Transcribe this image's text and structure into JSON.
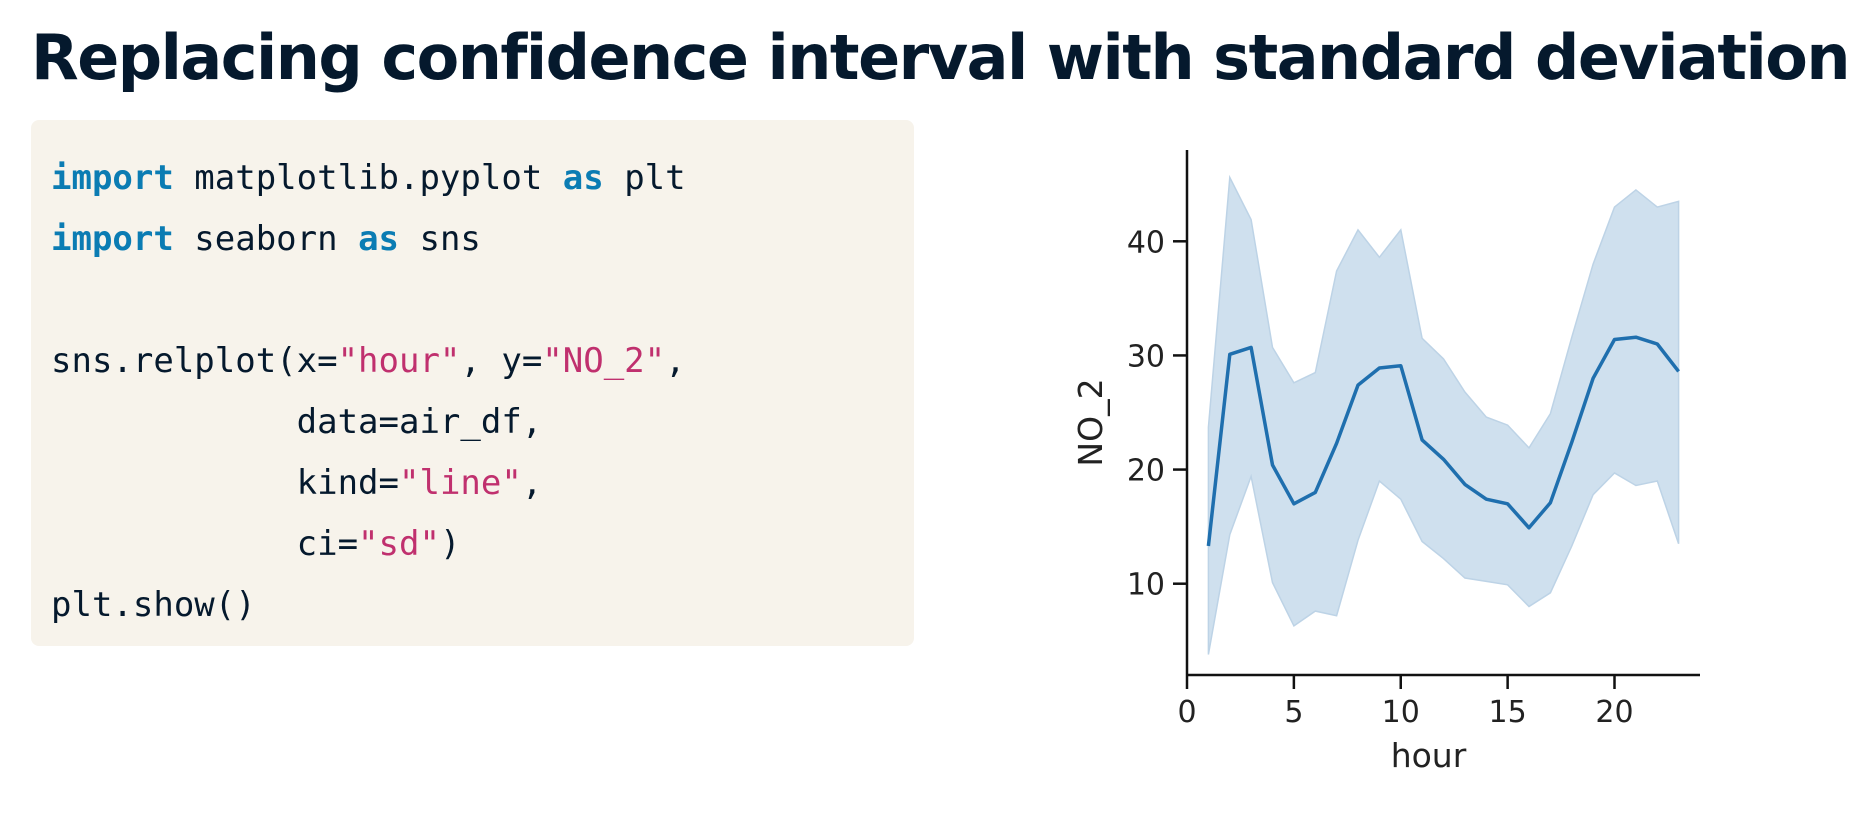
{
  "slide": {
    "title": "Replacing confidence interval with standard deviation"
  },
  "code": {
    "lines": [
      [
        {
          "t": "import",
          "k": "kw"
        },
        {
          "t": " matplotlib.pyplot ",
          "k": "plain"
        },
        {
          "t": "as",
          "k": "kw"
        },
        {
          "t": " plt",
          "k": "plain"
        }
      ],
      [
        {
          "t": "import",
          "k": "kw"
        },
        {
          "t": " seaborn ",
          "k": "plain"
        },
        {
          "t": "as",
          "k": "kw"
        },
        {
          "t": " sns",
          "k": "plain"
        }
      ],
      [],
      [
        {
          "t": "sns.relplot(x=",
          "k": "plain"
        },
        {
          "t": "\"hour\"",
          "k": "str"
        },
        {
          "t": ", y=",
          "k": "plain"
        },
        {
          "t": "\"NO_2\"",
          "k": "str"
        },
        {
          "t": ",",
          "k": "plain"
        }
      ],
      [
        {
          "t": "            data=air_df,",
          "k": "plain"
        }
      ],
      [
        {
          "t": "            kind=",
          "k": "plain"
        },
        {
          "t": "\"line\"",
          "k": "str"
        },
        {
          "t": ",",
          "k": "plain"
        }
      ],
      [
        {
          "t": "            ci=",
          "k": "plain"
        },
        {
          "t": "\"sd\"",
          "k": "str"
        },
        {
          "t": ")",
          "k": "plain"
        }
      ],
      [
        {
          "t": "plt.show()",
          "k": "plain"
        }
      ]
    ]
  },
  "chart_data": {
    "type": "line",
    "title": "",
    "xlabel": "hour",
    "ylabel": "NO_2",
    "xlim": [
      0,
      24
    ],
    "ylim": [
      2,
      48
    ],
    "xticks": [
      0,
      5,
      10,
      15,
      20
    ],
    "yticks": [
      10,
      20,
      30,
      40
    ],
    "grid": false,
    "line_color": "#1f6fae",
    "band_color": "#cfe0ee",
    "x": [
      1,
      2,
      3,
      4,
      5,
      6,
      7,
      8,
      9,
      10,
      11,
      12,
      13,
      14,
      15,
      16,
      17,
      18,
      19,
      20,
      21,
      22,
      23
    ],
    "mean": [
      13.3,
      30.1,
      30.7,
      20.4,
      17.0,
      18.0,
      22.3,
      27.4,
      28.9,
      29.1,
      22.6,
      20.9,
      18.7,
      17.4,
      17.0,
      14.9,
      17.1,
      22.4,
      28.0,
      31.4,
      31.6,
      31.0,
      28.6
    ],
    "lower": [
      3.8,
      14.3,
      19.4,
      10.1,
      6.3,
      7.6,
      7.2,
      13.8,
      19.0,
      17.4,
      13.7,
      12.2,
      10.5,
      10.2,
      9.9,
      8.0,
      9.2,
      13.3,
      17.8,
      19.7,
      18.6,
      19.0,
      13.5
    ],
    "upper": [
      23.7,
      45.6,
      41.9,
      30.7,
      27.6,
      28.5,
      37.4,
      41.0,
      38.6,
      41.0,
      31.5,
      29.7,
      26.8,
      24.6,
      23.9,
      21.9,
      24.9,
      31.6,
      38.0,
      43.0,
      44.5,
      43.0,
      43.5
    ]
  }
}
